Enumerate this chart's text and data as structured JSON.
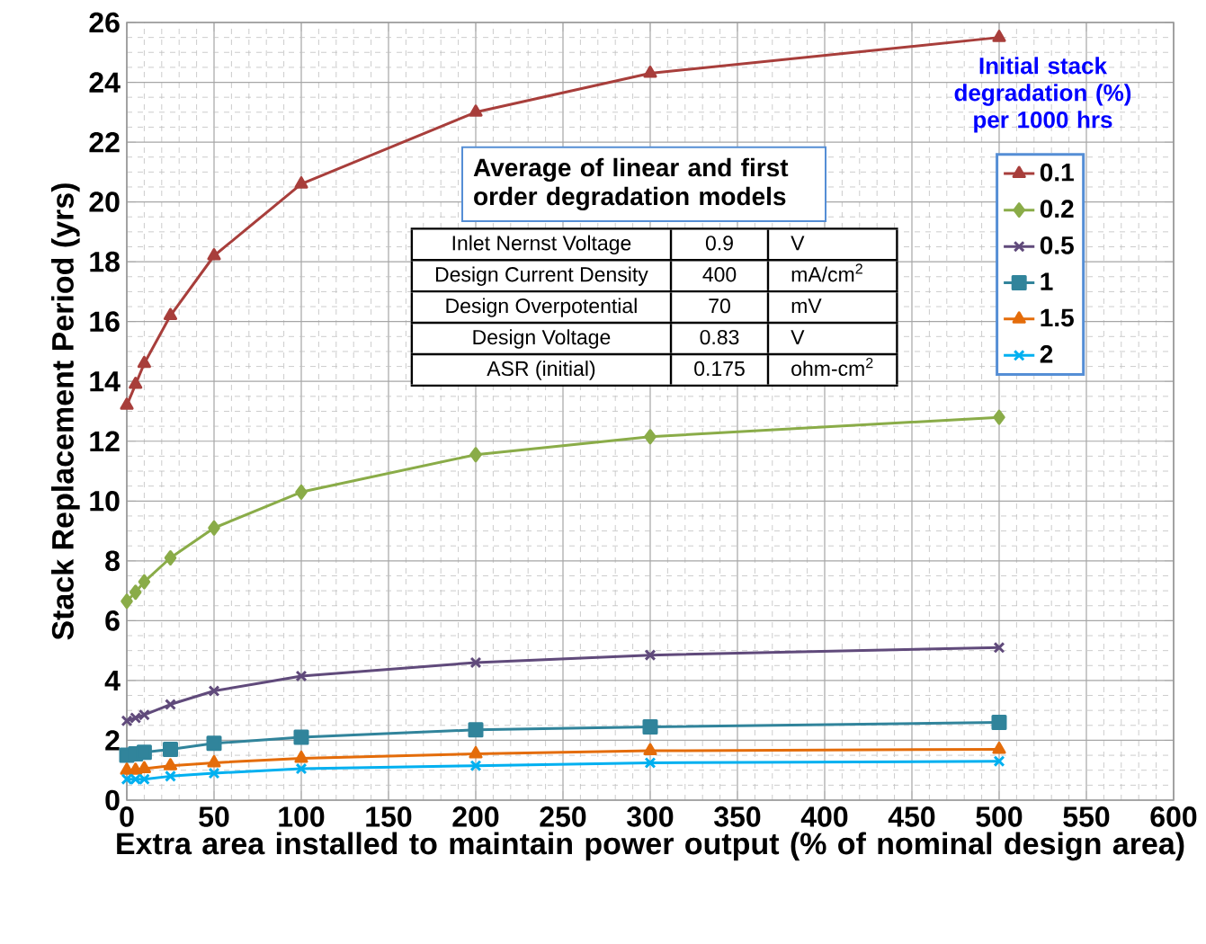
{
  "chart_data": {
    "type": "line",
    "xlabel": "Extra area installed to maintain power output (% of nominal design area)",
    "ylabel": "Stack Replacement Period (yrs)",
    "legend_title": "Initial stack degradation (%) per 1000 hrs",
    "x": [
      0,
      5,
      10,
      25,
      50,
      100,
      200,
      300,
      500
    ],
    "series": [
      {
        "name": "0.1",
        "color": "#a83e3b",
        "marker": "triangle",
        "values": [
          13.2,
          13.9,
          14.6,
          16.2,
          18.2,
          20.6,
          23.0,
          24.3,
          25.5
        ]
      },
      {
        "name": "0.2",
        "color": "#8aac48",
        "marker": "diamond",
        "values": [
          6.65,
          6.95,
          7.3,
          8.1,
          9.1,
          10.3,
          11.55,
          12.15,
          12.8
        ]
      },
      {
        "name": "0.5",
        "color": "#604a7b",
        "marker": "cross",
        "values": [
          2.65,
          2.75,
          2.85,
          3.2,
          3.65,
          4.15,
          4.6,
          4.85,
          5.1
        ]
      },
      {
        "name": "1",
        "color": "#31849b",
        "marker": "square",
        "values": [
          1.5,
          1.55,
          1.6,
          1.7,
          1.9,
          2.1,
          2.35,
          2.45,
          2.6
        ]
      },
      {
        "name": "1.5",
        "color": "#e46c0a",
        "marker": "triangle",
        "values": [
          1.0,
          1.0,
          1.05,
          1.15,
          1.25,
          1.4,
          1.55,
          1.65,
          1.7
        ]
      },
      {
        "name": "2",
        "color": "#00b0f0",
        "marker": "cross",
        "values": [
          0.7,
          0.7,
          0.7,
          0.8,
          0.9,
          1.05,
          1.15,
          1.25,
          1.3
        ]
      }
    ],
    "xlim": [
      0,
      600
    ],
    "ylim": [
      0,
      26
    ],
    "xticks": [
      0,
      50,
      100,
      150,
      200,
      250,
      300,
      350,
      400,
      450,
      500,
      550,
      600
    ],
    "yticks": [
      0,
      2,
      4,
      6,
      8,
      10,
      12,
      14,
      16,
      18,
      20,
      22,
      24,
      26
    ],
    "grid": true,
    "legend": "right",
    "line_style": "solid",
    "annotations": [
      "Average of linear and first order degradation models",
      "Inlet Nernst Voltage",
      "0.9",
      "V",
      "Design Current Density",
      "400",
      "mA/cm$^{2}$",
      "Design Overpotential",
      "70",
      "mV",
      "Design Voltage",
      "0.83",
      "V",
      "ASR (initial)",
      "0.175",
      "ohm-cm$^{2}$"
    ]
  }
}
